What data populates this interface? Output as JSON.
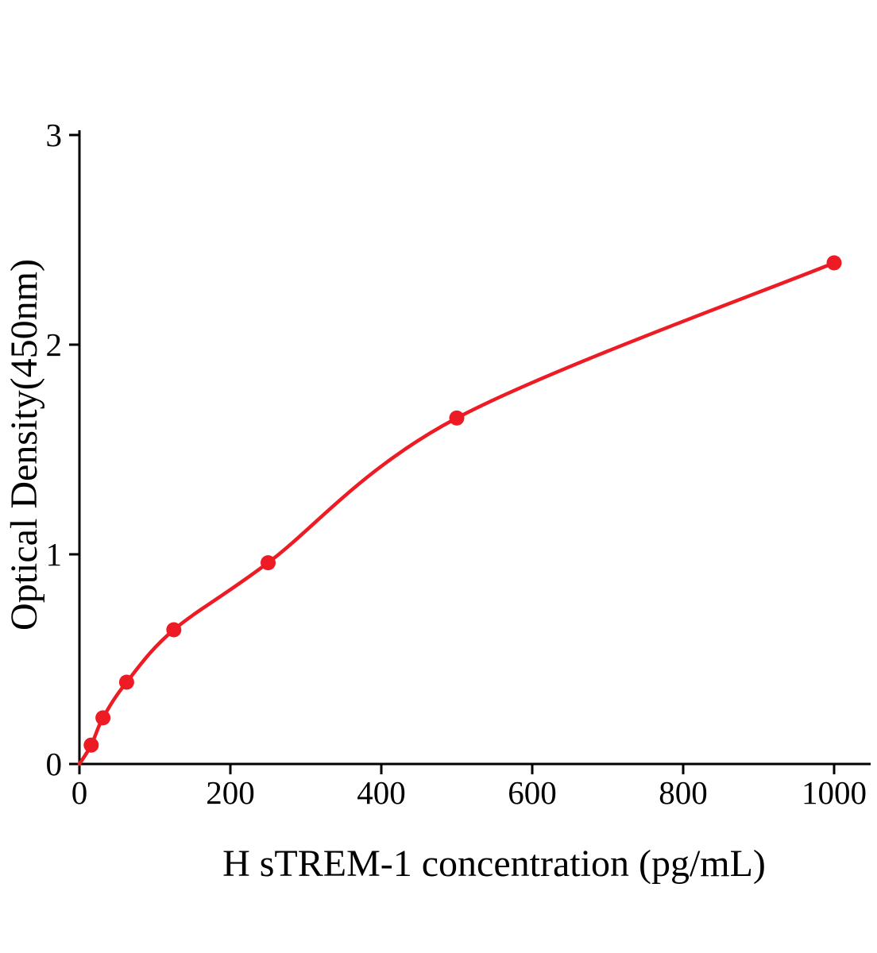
{
  "chart_data": {
    "type": "scatter",
    "subtype": "standard-curve-with-fitted-line",
    "title": "",
    "xlabel": "H sTREM-1 concentration (pg/mL)",
    "ylabel": "Optical Density(450nm)",
    "x": [
      15.6,
      31.2,
      62.5,
      125,
      250,
      500,
      1000
    ],
    "y": [
      0.09,
      0.22,
      0.39,
      0.64,
      0.96,
      1.65,
      2.39
    ],
    "curve_start": {
      "x": 0,
      "y": 0
    },
    "xlim": [
      0,
      1048
    ],
    "ylim": [
      0,
      3
    ],
    "xticks": [
      0,
      200,
      400,
      600,
      800,
      1000
    ],
    "yticks": [
      0,
      1,
      2,
      3
    ],
    "grid": false,
    "legend": null,
    "line_color": "#ed1c24",
    "marker_color": "#ed1c24",
    "axis_color": "#000000",
    "background_color": "#ffffff"
  }
}
